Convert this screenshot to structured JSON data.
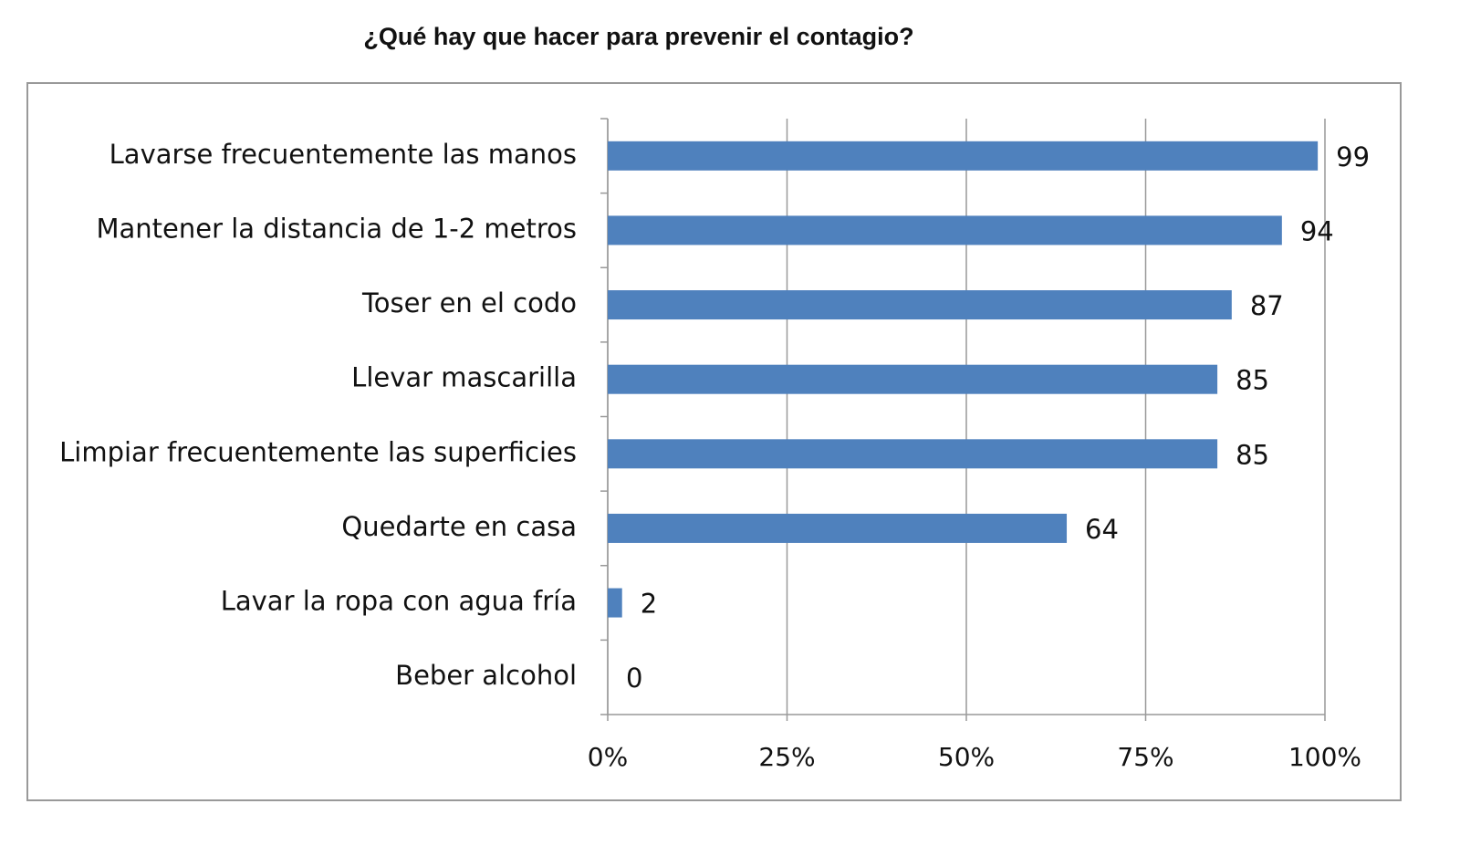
{
  "chart_data": {
    "type": "bar",
    "orientation": "horizontal",
    "title": "¿Qué hay que hacer para prevenir el contagio?",
    "categories": [
      "Lavarse frecuentemente las manos",
      "Mantener la distancia de 1-2 metros",
      "Toser en el codo",
      "Llevar mascarilla",
      "Limpiar frecuentemente las superficies",
      "Quedarte en casa",
      "Lavar la ropa con agua fría",
      "Beber alcohol"
    ],
    "values": [
      99,
      94,
      87,
      85,
      85,
      64,
      2,
      0
    ],
    "color": "#4f81bd",
    "xlim": [
      0,
      100
    ],
    "xticks": [
      {
        "value": 0,
        "label": "0%"
      },
      {
        "value": 25,
        "label": "25%"
      },
      {
        "value": 50,
        "label": "50%"
      },
      {
        "value": 75,
        "label": "75%"
      },
      {
        "value": 100,
        "label": "100%"
      }
    ],
    "grid": true
  }
}
